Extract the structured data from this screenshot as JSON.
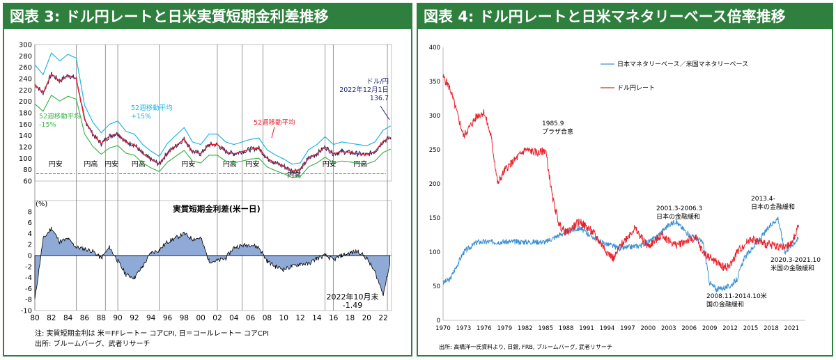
{
  "left": {
    "title": "図表 3: ドル円レートと日米実質短期金利差推移",
    "note_line1": "注: 実質短期金利は 米＝FFレートー コアCPI, 日＝コールレートー コアCPI",
    "note_line2": "出所: ブルームバーグ、武者リサーチ",
    "top_y_ticks": [
      "300",
      "280",
      "260",
      "240",
      "220",
      "200",
      "180",
      "160",
      "140",
      "120",
      "100",
      "80",
      "60"
    ],
    "bottom_y_ticks": [
      "(%)",
      "8",
      "6",
      "4",
      "2",
      "0",
      "-2",
      "-4",
      "-6",
      "-8",
      "-10"
    ],
    "x_ticks": [
      "80",
      "82",
      "84",
      "86",
      "88",
      "90",
      "92",
      "94",
      "96",
      "98",
      "00",
      "02",
      "04",
      "06",
      "08",
      "10",
      "12",
      "14",
      "16",
      "18",
      "20",
      "22"
    ],
    "regimes": [
      "円安",
      "円高",
      "円安",
      "円高",
      "円安",
      "円高",
      "円安",
      "円高",
      "円安",
      "円高"
    ],
    "ann_52ma_plus": [
      "52週移動平均",
      "+15%"
    ],
    "ann_52ma_minus": [
      "52週移動平均",
      "-15%"
    ],
    "ann_52ma": "52週移動平均",
    "ann_usdjpy": [
      "ドル/円",
      "2022年12月1日",
      "136.7"
    ],
    "ann_diff_title": "実質短期金利差(米ー日)",
    "ann_diff_end": [
      "2022年10月末",
      "-1.49"
    ],
    "colors": {
      "usdjpy": "#1f2a6b",
      "ma52": "#e8202a",
      "plus": "#22b5e6",
      "minus": "#3fb54a",
      "area": "#8faad6",
      "frame": "#2f7f3f"
    }
  },
  "right": {
    "title": "図表 4: ドル円レートと日米マネタリーベース倍率推移",
    "source": "出所: 高橋洋一氏資料より, 日銀, FRB, ブルームバーグ, 武者リサーチ",
    "y_ticks": [
      "400",
      "350",
      "300",
      "250",
      "200",
      "150",
      "100",
      "50",
      "0"
    ],
    "x_ticks": [
      "1970",
      "1973",
      "1976",
      "1979",
      "1982",
      "1985",
      "1988",
      "1991",
      "1994",
      "1997",
      "2000",
      "2003",
      "2006",
      "2009",
      "2012",
      "2015",
      "2018",
      "2021"
    ],
    "legend_ratio": "日本マネタリーベース／米国マネタリーベース",
    "legend_usdjpy": "ドル円レート",
    "ann_plaza": [
      "1985.9",
      "プラザ合意"
    ],
    "ann_2001": [
      "2001.3-2006.3",
      "日本の金融緩和"
    ],
    "ann_2013": [
      "2013.4-",
      "日本の金融緩和"
    ],
    "ann_2008": [
      "2008.11-2014.10米",
      "国の金融緩和"
    ],
    "ann_2020": [
      "2020.3-2021.10",
      "米国の金融緩和"
    ],
    "colors": {
      "ratio": "#3a8fd1",
      "usdjpy": "#e8202a"
    }
  },
  "chart_data": [
    {
      "type": "line",
      "title": "図表 3: ドル円レートと日米実質短期金利差推移",
      "ylim": [
        60,
        300
      ],
      "series": [
        {
          "name": "ドル/円",
          "x": [
            1980,
            1981,
            1982,
            1983,
            1984,
            1985,
            1986,
            1987,
            1988,
            1989,
            1990,
            1991,
            1992,
            1993,
            1994,
            1995,
            1996,
            1997,
            1998,
            1999,
            2000,
            2001,
            2002,
            2003,
            2004,
            2005,
            2006,
            2007,
            2008,
            2009,
            2010,
            2011,
            2012,
            2013,
            2014,
            2015,
            2016,
            2017,
            2018,
            2019,
            2020,
            2021,
            2022,
            2022.9
          ],
          "values": [
            230,
            215,
            248,
            236,
            246,
            240,
            168,
            142,
            126,
            139,
            144,
            128,
            124,
            108,
            98,
            90,
            110,
            122,
            134,
            112,
            108,
            124,
            124,
            112,
            108,
            112,
            116,
            118,
            100,
            92,
            86,
            78,
            80,
            100,
            108,
            120,
            108,
            112,
            110,
            108,
            106,
            112,
            130,
            136.7
          ]
        }
      ]
    },
    {
      "type": "area",
      "title": "実質短期金利差(米ー日)",
      "ylim": [
        -10,
        10
      ],
      "x": [
        1980,
        1981,
        1982,
        1983,
        1984,
        1985,
        1986,
        1987,
        1988,
        1989,
        1990,
        1991,
        1992,
        1993,
        1994,
        1995,
        1996,
        1997,
        1998,
        1999,
        2000,
        2001,
        2002,
        2003,
        2004,
        2005,
        2006,
        2007,
        2008,
        2009,
        2010,
        2011,
        2012,
        2013,
        2014,
        2015,
        2016,
        2017,
        2018,
        2019,
        2020,
        2021,
        2022,
        2022.8
      ],
      "values": [
        -8,
        3,
        5,
        2.5,
        3,
        1.5,
        1.2,
        0.8,
        -0.5,
        1.5,
        -1,
        -3.5,
        -4,
        -2,
        0.5,
        1,
        2.5,
        3.2,
        4,
        3,
        3.2,
        -1,
        -1,
        -0.5,
        1.5,
        1.8,
        2,
        1.5,
        -1,
        -2,
        -2.5,
        -2,
        -1.5,
        -1.5,
        -0.5,
        0,
        -0.8,
        0,
        0.5,
        0.8,
        -0.5,
        -3,
        -7,
        -1.49
      ]
    },
    {
      "type": "line",
      "title": "図表 4: ドル円レートと日米マネタリーベース倍率推移",
      "ylim": [
        0,
        400
      ],
      "series": [
        {
          "name": "日本マネタリーベース／米国マネタリーベース",
          "x": [
            1970,
            1971,
            1972,
            1973,
            1975,
            1978,
            1982,
            1985,
            1988,
            1990,
            1993,
            1996,
            1999,
            2001,
            2003,
            2004,
            2006,
            2008,
            2009,
            2010,
            2012,
            2013,
            2014,
            2016,
            2018,
            2019,
            2020,
            2021,
            2022
          ],
          "values": [
            55,
            60,
            80,
            100,
            115,
            115,
            115,
            115,
            130,
            135,
            115,
            105,
            110,
            120,
            140,
            145,
            125,
            115,
            55,
            45,
            50,
            60,
            90,
            115,
            140,
            150,
            100,
            110,
            120
          ]
        },
        {
          "name": "ドル円レート",
          "x": [
            1970,
            1971,
            1972,
            1973,
            1975,
            1976,
            1977,
            1978,
            1979,
            1980,
            1982,
            1984,
            1985,
            1986,
            1987,
            1988,
            1990,
            1992,
            1994,
            1995,
            1996,
            1998,
            2000,
            2002,
            2004,
            2006,
            2007,
            2008,
            2010,
            2011,
            2012,
            2013,
            2015,
            2017,
            2019,
            2020,
            2021,
            2022
          ],
          "values": [
            357,
            340,
            305,
            270,
            300,
            305,
            270,
            200,
            220,
            230,
            250,
            245,
            250,
            180,
            140,
            128,
            145,
            128,
            100,
            90,
            110,
            135,
            108,
            125,
            110,
            118,
            120,
            100,
            85,
            78,
            80,
            100,
            120,
            112,
            109,
            106,
            112,
            140
          ]
        }
      ]
    }
  ]
}
